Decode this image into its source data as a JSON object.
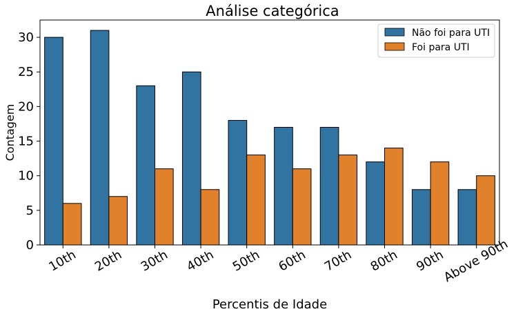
{
  "chart_data": {
    "type": "bar",
    "title": "Análise categórica",
    "xlabel": "Percentis de Idade",
    "ylabel": "Contagem",
    "categories": [
      "10th",
      "20th",
      "30th",
      "40th",
      "50th",
      "60th",
      "70th",
      "80th",
      "90th",
      "Above 90th"
    ],
    "series": [
      {
        "name": "Não foi para UTI",
        "color": "#3274a1",
        "values": [
          30,
          31,
          23,
          25,
          18,
          17,
          17,
          12,
          8,
          8
        ]
      },
      {
        "name": "Foi para UTI",
        "color": "#e1812c",
        "values": [
          6,
          7,
          11,
          8,
          13,
          11,
          13,
          14,
          12,
          10
        ]
      }
    ],
    "ylim": [
      0,
      32.5
    ],
    "yticks": [
      "0",
      "5",
      "10",
      "15",
      "20",
      "25",
      "30"
    ],
    "legend_position": "top-right",
    "grid": false
  }
}
